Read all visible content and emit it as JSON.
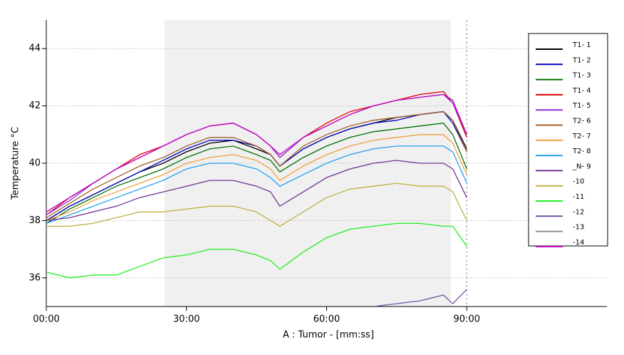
{
  "chart_data": {
    "type": "line",
    "xlabel": "A : Tumor - [mm:ss]",
    "ylabel": "Temperature °C",
    "x": [
      0,
      5,
      10,
      15,
      20,
      25,
      30,
      35,
      40,
      45,
      48,
      50,
      55,
      60,
      65,
      70,
      75,
      80,
      85,
      87,
      90
    ],
    "xlim": [
      0,
      120
    ],
    "xticks": [
      {
        "value": 0,
        "label": "00:00"
      },
      {
        "value": 30,
        "label": "30:00"
      },
      {
        "value": 60,
        "label": "60:00"
      },
      {
        "value": 90,
        "label": "90:00"
      }
    ],
    "ylim": [
      35,
      45
    ],
    "yticks": [
      36,
      38,
      40,
      42,
      44
    ],
    "grid": true,
    "highlight_span": [
      25.3,
      86.6
    ],
    "vline": 90,
    "legend": "upper right",
    "series": [
      {
        "name": "T1- 1",
        "color": "#000000",
        "values": [
          38.0,
          38.5,
          38.9,
          39.3,
          39.7,
          40.0,
          40.4,
          40.7,
          40.8,
          40.5,
          40.3,
          39.9,
          40.5,
          40.9,
          41.2,
          41.4,
          41.6,
          41.7,
          41.8,
          41.5,
          40.5
        ]
      },
      {
        "name": "T1- 2",
        "color": "#0000c0",
        "values": [
          38.0,
          38.5,
          38.9,
          39.3,
          39.7,
          40.1,
          40.5,
          40.8,
          40.8,
          40.6,
          40.3,
          39.9,
          40.5,
          40.9,
          41.2,
          41.4,
          41.5,
          41.7,
          41.8,
          41.4,
          40.4
        ]
      },
      {
        "name": "T1- 3",
        "color": "#007000",
        "values": [
          37.9,
          38.4,
          38.8,
          39.2,
          39.5,
          39.8,
          40.2,
          40.5,
          40.6,
          40.3,
          40.1,
          39.7,
          40.2,
          40.6,
          40.9,
          41.1,
          41.2,
          41.3,
          41.4,
          41.0,
          39.8
        ]
      },
      {
        "name": "T1- 4",
        "color": "#e00000",
        "values": [
          38.2,
          38.8,
          39.3,
          39.8,
          40.3,
          40.6,
          41.0,
          41.3,
          41.4,
          41.0,
          40.6,
          40.2,
          40.9,
          41.4,
          41.8,
          42.0,
          42.2,
          42.4,
          42.5,
          42.1,
          40.9
        ]
      },
      {
        "name": "T1- 5",
        "color": "#9030e0",
        "values": [
          38.2,
          38.7,
          39.3,
          39.8,
          40.2,
          40.6,
          41.0,
          41.3,
          41.4,
          41.0,
          40.6,
          40.2,
          40.9,
          41.3,
          41.7,
          42.0,
          42.2,
          42.3,
          42.4,
          42.1,
          41.0
        ]
      },
      {
        "name": "T2- 6",
        "color": "#a0602a",
        "values": [
          38.1,
          38.6,
          39.1,
          39.5,
          39.9,
          40.2,
          40.6,
          40.9,
          40.9,
          40.6,
          40.3,
          39.9,
          40.6,
          41.0,
          41.3,
          41.5,
          41.6,
          41.7,
          41.8,
          41.5,
          40.4
        ]
      },
      {
        "name": "T2- 7",
        "color": "#f0a040",
        "values": [
          38.0,
          38.3,
          38.7,
          39.0,
          39.3,
          39.6,
          40.0,
          40.2,
          40.3,
          40.1,
          39.8,
          39.4,
          39.9,
          40.3,
          40.6,
          40.8,
          40.9,
          41.0,
          41.0,
          40.7,
          39.6
        ]
      },
      {
        "name": "T2- 8",
        "color": "#20a0f0",
        "values": [
          37.9,
          38.2,
          38.5,
          38.8,
          39.1,
          39.4,
          39.8,
          40.0,
          40.0,
          39.8,
          39.5,
          39.2,
          39.6,
          40.0,
          40.3,
          40.5,
          40.6,
          40.6,
          40.6,
          40.4,
          39.3
        ]
      },
      {
        "name": "_N- 9",
        "color": "#703090",
        "values": [
          38.0,
          38.1,
          38.3,
          38.5,
          38.8,
          39.0,
          39.2,
          39.4,
          39.4,
          39.2,
          39.0,
          38.5,
          39.0,
          39.5,
          39.8,
          40.0,
          40.1,
          40.0,
          40.0,
          39.8,
          38.8
        ]
      },
      {
        "name": "-10",
        "color": "#c0b040",
        "values": [
          37.8,
          37.8,
          37.9,
          38.1,
          38.3,
          38.3,
          38.4,
          38.5,
          38.5,
          38.3,
          38.0,
          37.8,
          38.3,
          38.8,
          39.1,
          39.2,
          39.3,
          39.2,
          39.2,
          39.0,
          38.0
        ]
      },
      {
        "name": "-11",
        "color": "#20f020",
        "values": [
          36.2,
          36.0,
          36.1,
          36.1,
          36.4,
          36.7,
          36.8,
          37.0,
          37.0,
          36.8,
          36.6,
          36.3,
          36.9,
          37.4,
          37.7,
          37.8,
          37.9,
          37.9,
          37.8,
          37.8,
          37.1
        ]
      },
      {
        "name": "-12",
        "color": "#7050a0",
        "values": [
          null,
          null,
          null,
          null,
          null,
          null,
          null,
          null,
          null,
          null,
          null,
          null,
          null,
          null,
          null,
          35.0,
          35.1,
          35.2,
          35.4,
          35.1,
          35.6
        ]
      },
      {
        "name": "-13",
        "color": "#909090",
        "values": [
          null,
          null,
          null,
          null,
          null,
          null,
          null,
          null,
          null,
          null,
          null,
          null,
          null,
          null,
          null,
          null,
          null,
          null,
          null,
          null,
          null
        ]
      },
      {
        "name": "-14",
        "color": "#c000c0",
        "values": [
          38.3,
          38.8,
          39.3,
          39.8,
          40.2,
          40.6,
          41.0,
          41.3,
          41.4,
          41.0,
          40.6,
          40.3,
          40.9,
          41.3,
          41.7,
          42.0,
          42.2,
          42.3,
          42.4,
          42.2,
          41.0
        ]
      }
    ]
  }
}
